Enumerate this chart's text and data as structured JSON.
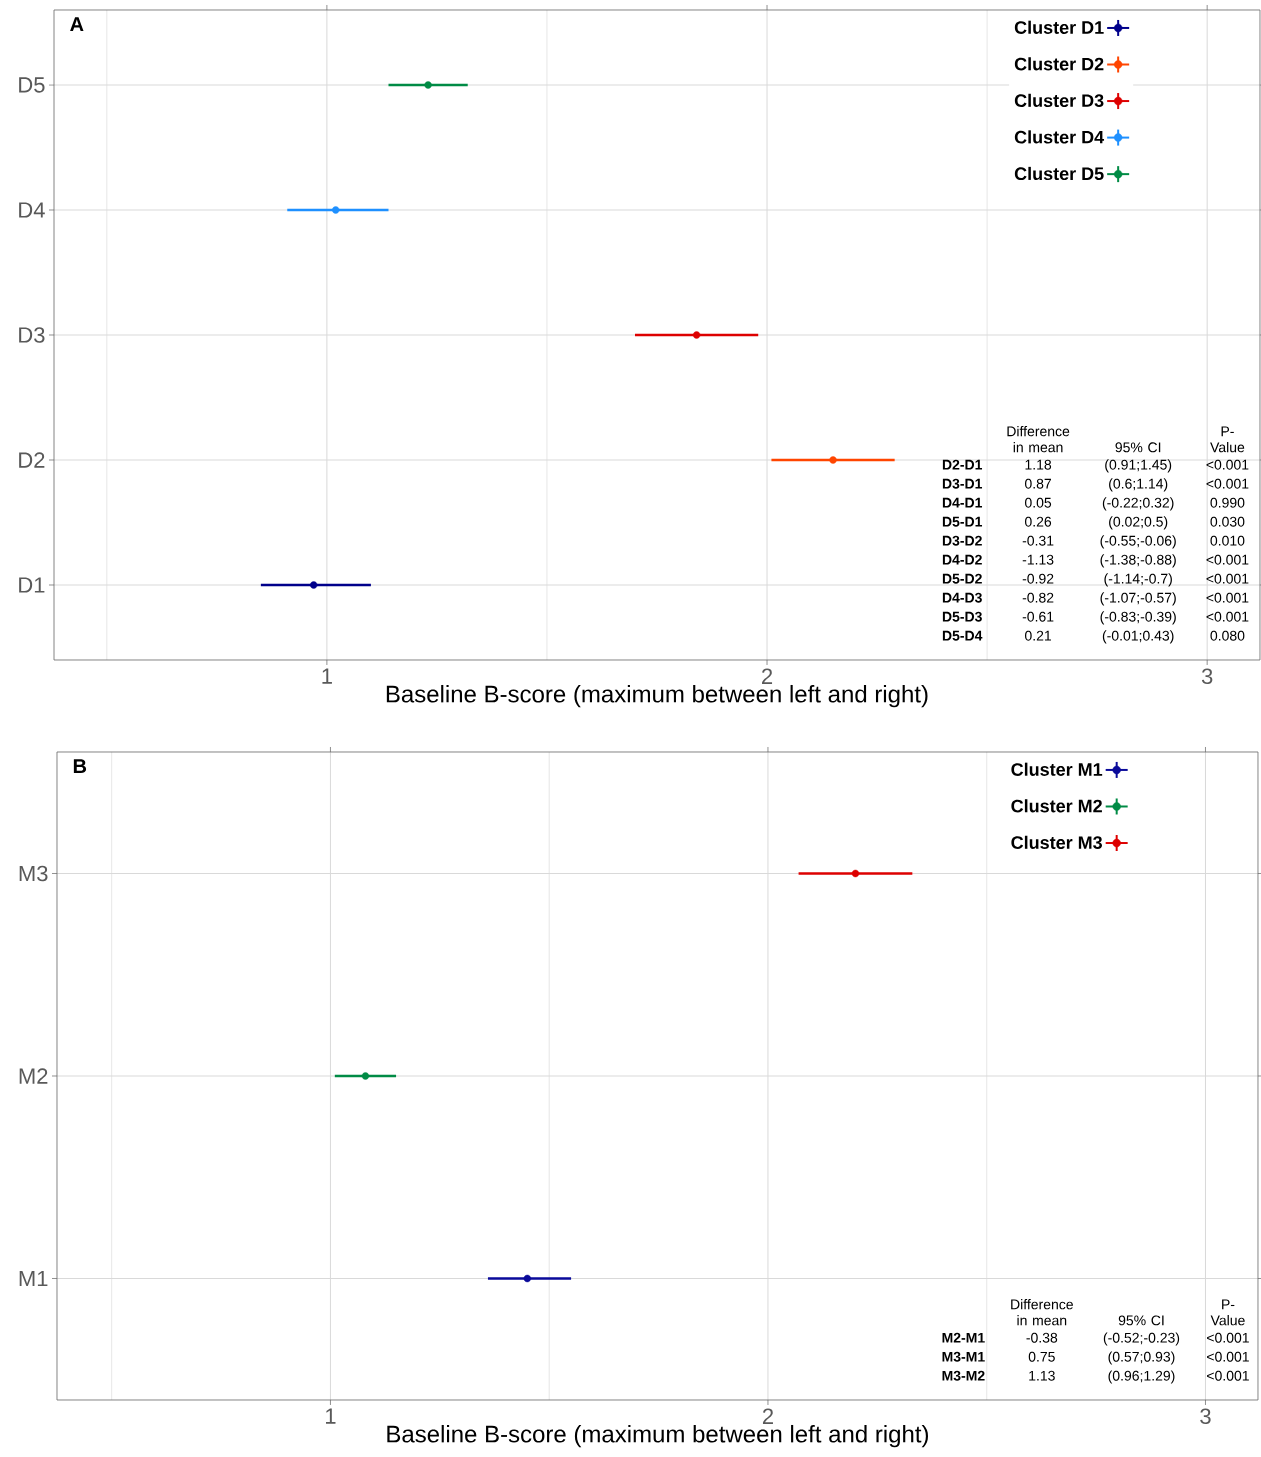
{
  "chart_data": [
    {
      "type": "scatter",
      "title": "A",
      "xlabel": "Baseline B-score (maximum between left and right)",
      "orientation": "horizontal",
      "categories": [
        "D5",
        "D4",
        "D3",
        "D2",
        "D1"
      ],
      "xlim": [
        0.38,
        3.12
      ],
      "xticks": [
        {
          "value": 0.5,
          "label": null
        },
        1,
        {
          "value": 1.5,
          "label": null
        },
        2,
        {
          "value": 2.5,
          "label": null
        },
        3
      ],
      "grid": true,
      "legend": "top right",
      "marker": "circle",
      "series": [
        {
          "name": "Cluster D1",
          "color": "#00008b",
          "values": [
            null,
            null,
            null,
            null,
            0.97
          ],
          "errors": [
            null,
            null,
            null,
            null,
            [
              0.85,
              1.1
            ]
          ]
        },
        {
          "name": "Cluster D2",
          "color": "#ff4500",
          "values": [
            null,
            null,
            null,
            2.15,
            null
          ],
          "errors": [
            null,
            null,
            null,
            [
              2.01,
              2.29
            ],
            null
          ]
        },
        {
          "name": "Cluster D3",
          "color": "#dd0000",
          "values": [
            null,
            null,
            1.84,
            null,
            null
          ],
          "errors": [
            null,
            null,
            [
              1.7,
              1.98
            ],
            null,
            null
          ]
        },
        {
          "name": "Cluster D4",
          "color": "#1e90ff",
          "values": [
            null,
            1.02,
            null,
            null,
            null
          ],
          "errors": [
            null,
            [
              0.91,
              1.14
            ],
            null,
            null,
            null
          ]
        },
        {
          "name": "Cluster D5",
          "color": "#008b45",
          "values": [
            1.23,
            null,
            null,
            null,
            null
          ],
          "errors": [
            [
              1.14,
              1.32
            ],
            null,
            null,
            null,
            null
          ]
        }
      ],
      "annotations": [
        "Difference in mean",
        "95% CI",
        "P-Value",
        "D2-D1",
        "1.18",
        "(0.91;1.45)",
        "<0.001",
        "D3-D1",
        "0.87",
        "(0.6;1.14)",
        "<0.001",
        "D4-D1",
        "0.05",
        "(-0.22;0.32)",
        "0.990",
        "D5-D1",
        "0.26",
        "(0.02;0.5)",
        "0.030",
        "D3-D2",
        "-0.31",
        "(-0.55;-0.06)",
        "0.010",
        "D4-D2",
        "-1.13",
        "(-1.38;-0.88)",
        "<0.001",
        "D5-D2",
        "-0.92",
        "(-1.14;-0.7)",
        "<0.001",
        "D4-D3",
        "-0.82",
        "(-1.07;-0.57)",
        "<0.001",
        "D5-D3",
        "-0.61",
        "(-0.83;-0.39)",
        "<0.001",
        "D5-D4",
        "0.21",
        "(-0.01;0.43)",
        "0.080"
      ]
    },
    {
      "type": "scatter",
      "title": "B",
      "xlabel": "Baseline B-score (maximum between left and right)",
      "orientation": "horizontal",
      "categories": [
        "M3",
        "M2",
        "M1"
      ],
      "xlim": [
        0.375,
        3.12
      ],
      "xticks": [
        {
          "value": 0.5,
          "label": null
        },
        1,
        {
          "value": 1.5,
          "label": null
        },
        2,
        {
          "value": 2.5,
          "label": null
        },
        3
      ],
      "grid": true,
      "legend": "top right",
      "marker": "circle",
      "series": [
        {
          "name": "Cluster M1",
          "color": "#0a0a9a",
          "values": [
            null,
            null,
            1.45
          ],
          "errors": [
            null,
            null,
            [
              1.36,
              1.55
            ]
          ]
        },
        {
          "name": "Cluster M2",
          "color": "#008b45",
          "values": [
            null,
            1.08,
            null
          ],
          "errors": [
            null,
            [
              1.01,
              1.15
            ],
            null
          ]
        },
        {
          "name": "Cluster M3",
          "color": "#dd0000",
          "values": [
            2.2,
            null,
            null
          ],
          "errors": [
            [
              2.07,
              2.33
            ],
            null,
            null
          ]
        }
      ],
      "annotations": [
        "Difference in mean",
        "95% CI",
        "P-Value",
        "M2-M1",
        "-0.38",
        "(-0.52;-0.23)",
        "<0.001",
        "M3-M1",
        "0.75",
        "(0.57;0.93)",
        "<0.001",
        "M3-M2",
        "1.13",
        "(0.96;1.29)",
        "<0.001"
      ]
    }
  ]
}
